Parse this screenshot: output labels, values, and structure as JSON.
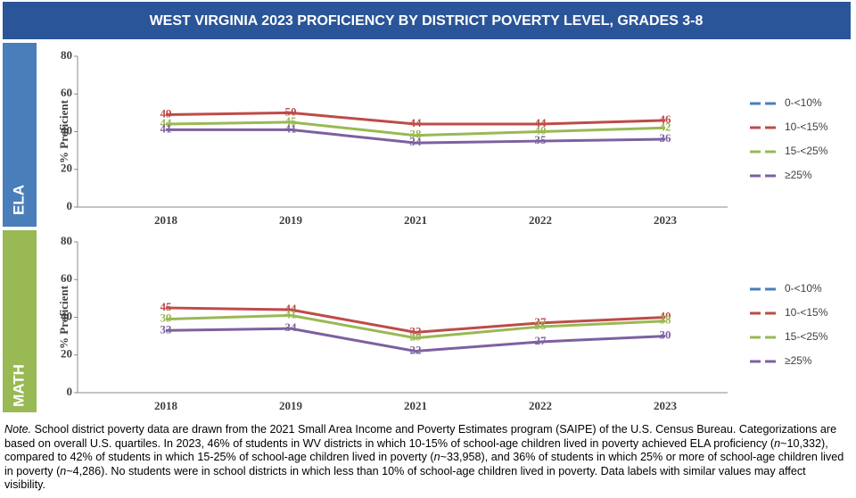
{
  "header": {
    "title": "WEST VIRGINIA 2023 PROFICIENCY BY DISTRICT POVERTY LEVEL, GRADES 3-8"
  },
  "chart_data": [
    {
      "type": "line",
      "panel": "ELA",
      "y_label": "% Proficient",
      "categories": [
        "2018",
        "2019",
        "2021",
        "2022",
        "2023"
      ],
      "ylim": [
        0,
        80
      ],
      "yticks": [
        0,
        20,
        40,
        60,
        80
      ],
      "legend": "right",
      "series": [
        {
          "name": "0-<10%",
          "color": "#4a7ebb",
          "values": [
            null,
            null,
            null,
            null,
            null
          ]
        },
        {
          "name": "10-<15%",
          "color": "#be4b48",
          "values": [
            49,
            50,
            44,
            44,
            46
          ]
        },
        {
          "name": "15-<25%",
          "color": "#98b954",
          "values": [
            44,
            45,
            38,
            40,
            42
          ]
        },
        {
          "name": "≥25%",
          "color": "#7d60a0",
          "values": [
            41,
            41,
            34,
            35,
            36
          ]
        }
      ]
    },
    {
      "type": "line",
      "panel": "MATH",
      "y_label": "% Proficient",
      "categories": [
        "2018",
        "2019",
        "2021",
        "2022",
        "2023"
      ],
      "ylim": [
        0,
        80
      ],
      "yticks": [
        0,
        20,
        40,
        60,
        80
      ],
      "legend": "right",
      "series": [
        {
          "name": "0-<10%",
          "color": "#4a7ebb",
          "values": [
            null,
            null,
            null,
            null,
            null
          ]
        },
        {
          "name": "10-<15%",
          "color": "#be4b48",
          "values": [
            45,
            44,
            32,
            37,
            40
          ]
        },
        {
          "name": "15-<25%",
          "color": "#98b954",
          "values": [
            39,
            41,
            29,
            35,
            38
          ]
        },
        {
          "name": "≥25%",
          "color": "#7d60a0",
          "values": [
            33,
            34,
            22,
            27,
            30
          ]
        }
      ]
    }
  ],
  "note": [
    "Note.",
    " School district poverty data are drawn from the 2021 Small Area Income and Poverty Estimates program (SAIPE) of the U.S. Census Bureau. Categorizations are based on overall U.S. quartiles. In 2023, 46% of students in WV districts in which 10-15% of school-age children lived in poverty achieved ELA proficiency (",
    "n",
    "~10,332), compared to 42% of students in which 15-25% of school-age children lived in poverty (",
    "n",
    "~33,958), and 36% of students in which 25% or more of school-age children lived in poverty (",
    "n",
    "~4,286). No students were in school districts in which less than 10% of school-age children lived in poverty. Data labels with similar values may affect visibility."
  ]
}
